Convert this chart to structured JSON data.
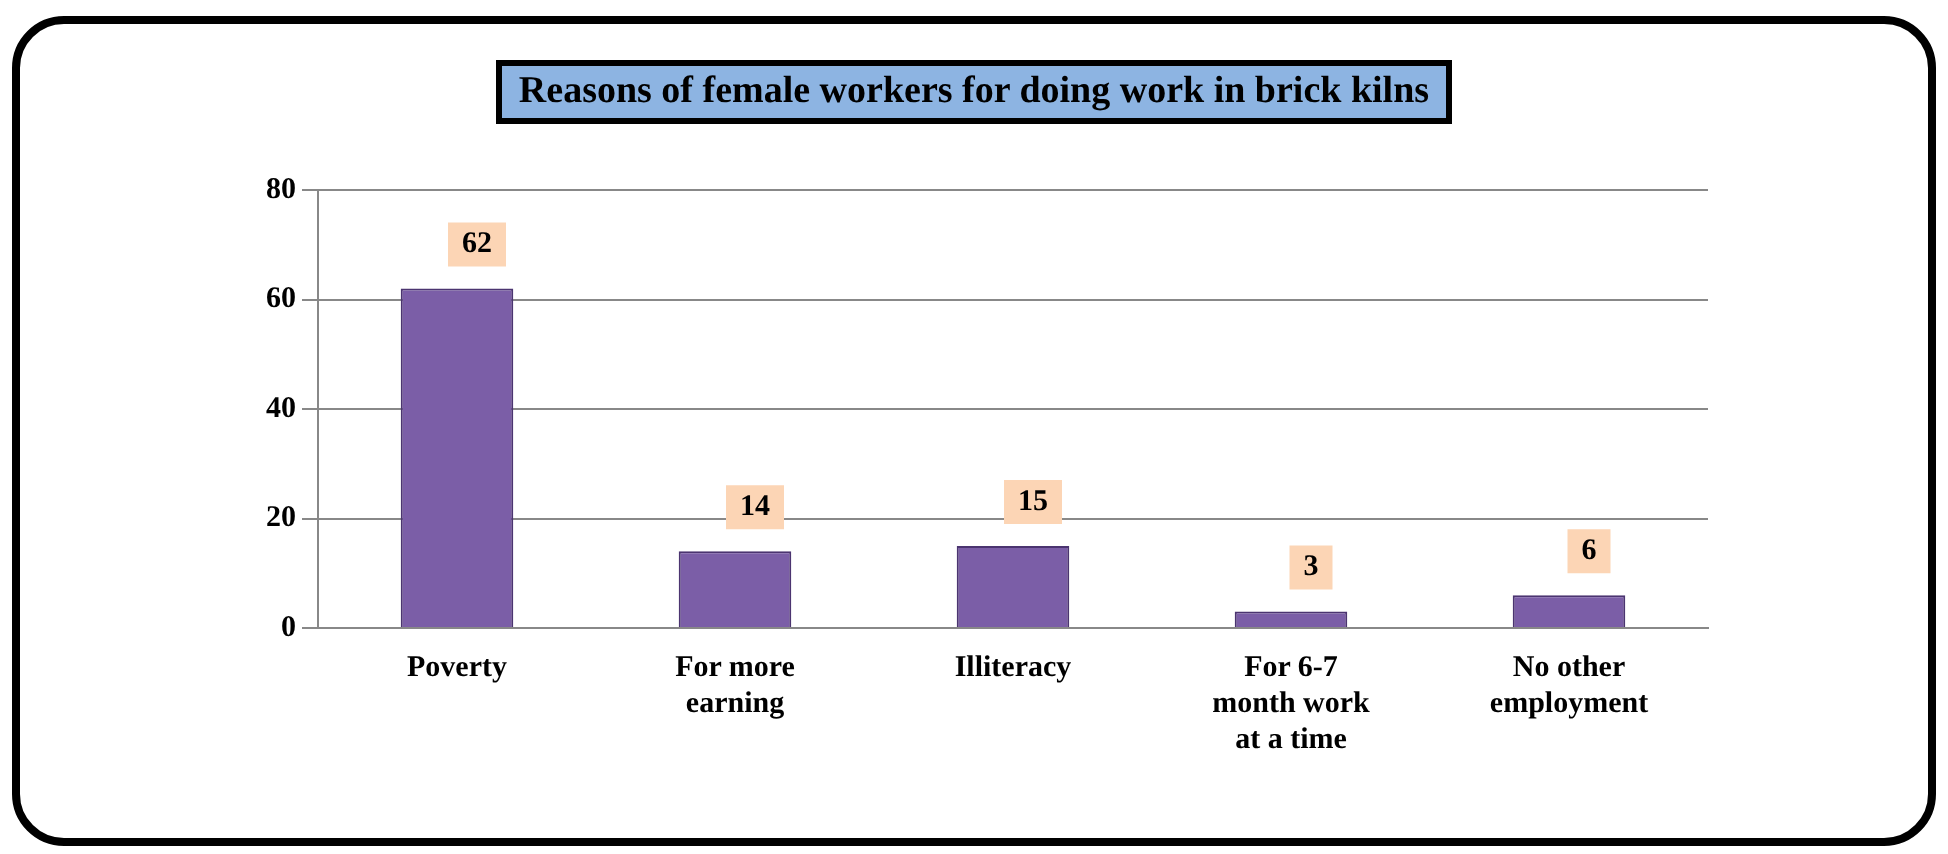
{
  "chart_data": {
    "type": "bar",
    "title": "Reasons of female workers for doing work in brick kilns",
    "categories": [
      "Poverty",
      "For more earning",
      "Illiteracy",
      "For 6-7 month work at a time",
      "No other employment"
    ],
    "values": [
      62,
      14,
      15,
      3,
      6
    ],
    "color": "#7b5ea7",
    "ylim": [
      0,
      80
    ],
    "yticks": [
      0,
      20,
      40,
      60,
      80
    ],
    "grid": "y",
    "data_labels": true
  }
}
